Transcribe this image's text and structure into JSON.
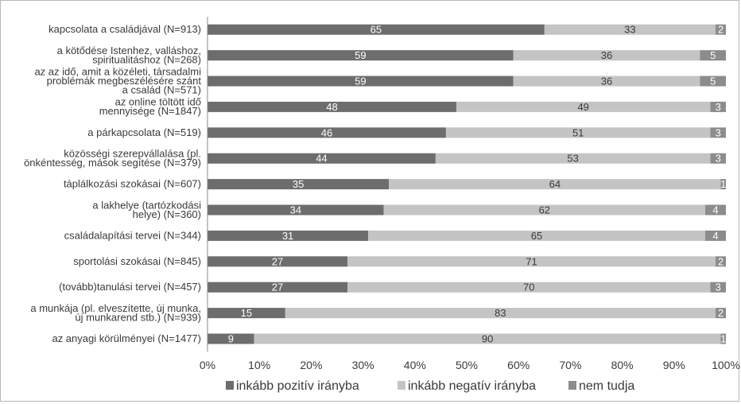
{
  "chart_data": {
    "type": "bar",
    "orientation": "horizontal",
    "stacked": true,
    "percent": true,
    "categories": [
      [
        "kapcsolata a családjával (N=913)"
      ],
      [
        "a kötődése Istenhez, valláshoz,",
        "spiritualitáshoz (N=268)"
      ],
      [
        "az az idő, amit a közéleti, társadalmi",
        "problémák megbeszélésére szánt",
        "a család (N=571)"
      ],
      [
        "az online töltött idő",
        "mennyisége (N=1847)"
      ],
      [
        "a párkapcsolata (N=519)"
      ],
      [
        "közösségi szerepvállalása (pl.",
        "önkéntesség, mások segítése (N=379)"
      ],
      [
        "táplálkozási szokásai (N=607)"
      ],
      [
        "a lakhelye (tartózkodási",
        "helye) (N=360)"
      ],
      [
        "családalapítási tervei (N=344)"
      ],
      [
        "sportolási szokásai (N=845)"
      ],
      [
        "(tovább)tanulási tervei (N=457)"
      ],
      [
        "a munkája (pl. elveszítette, új munka,",
        "új munkarend stb.) (N=939)"
      ],
      [
        "az anyagi körülményei (N=1477)"
      ]
    ],
    "series": [
      {
        "name": "inkább pozitív irányba",
        "color": "#6d6d6d",
        "label_color": "#ffffff",
        "values": [
          65,
          59,
          59,
          48,
          46,
          44,
          35,
          34,
          31,
          27,
          27,
          15,
          9
        ]
      },
      {
        "name": "inkább negatív irányba",
        "color": "#c4c4c4",
        "label_color": "#3a3a3a",
        "values": [
          33,
          36,
          36,
          49,
          51,
          53,
          64,
          62,
          65,
          71,
          70,
          83,
          90
        ]
      },
      {
        "name": "nem tudja",
        "color": "#8c8c8c",
        "label_color": "#ffffff",
        "values": [
          2,
          5,
          5,
          3,
          3,
          3,
          1,
          4,
          4,
          2,
          3,
          2,
          1
        ]
      }
    ],
    "x_ticks": [
      "0%",
      "10%",
      "20%",
      "30%",
      "40%",
      "50%",
      "60%",
      "70%",
      "80%",
      "90%",
      "100%"
    ],
    "xlim": [
      0,
      100
    ],
    "grid": false,
    "legend_position": "bottom"
  }
}
